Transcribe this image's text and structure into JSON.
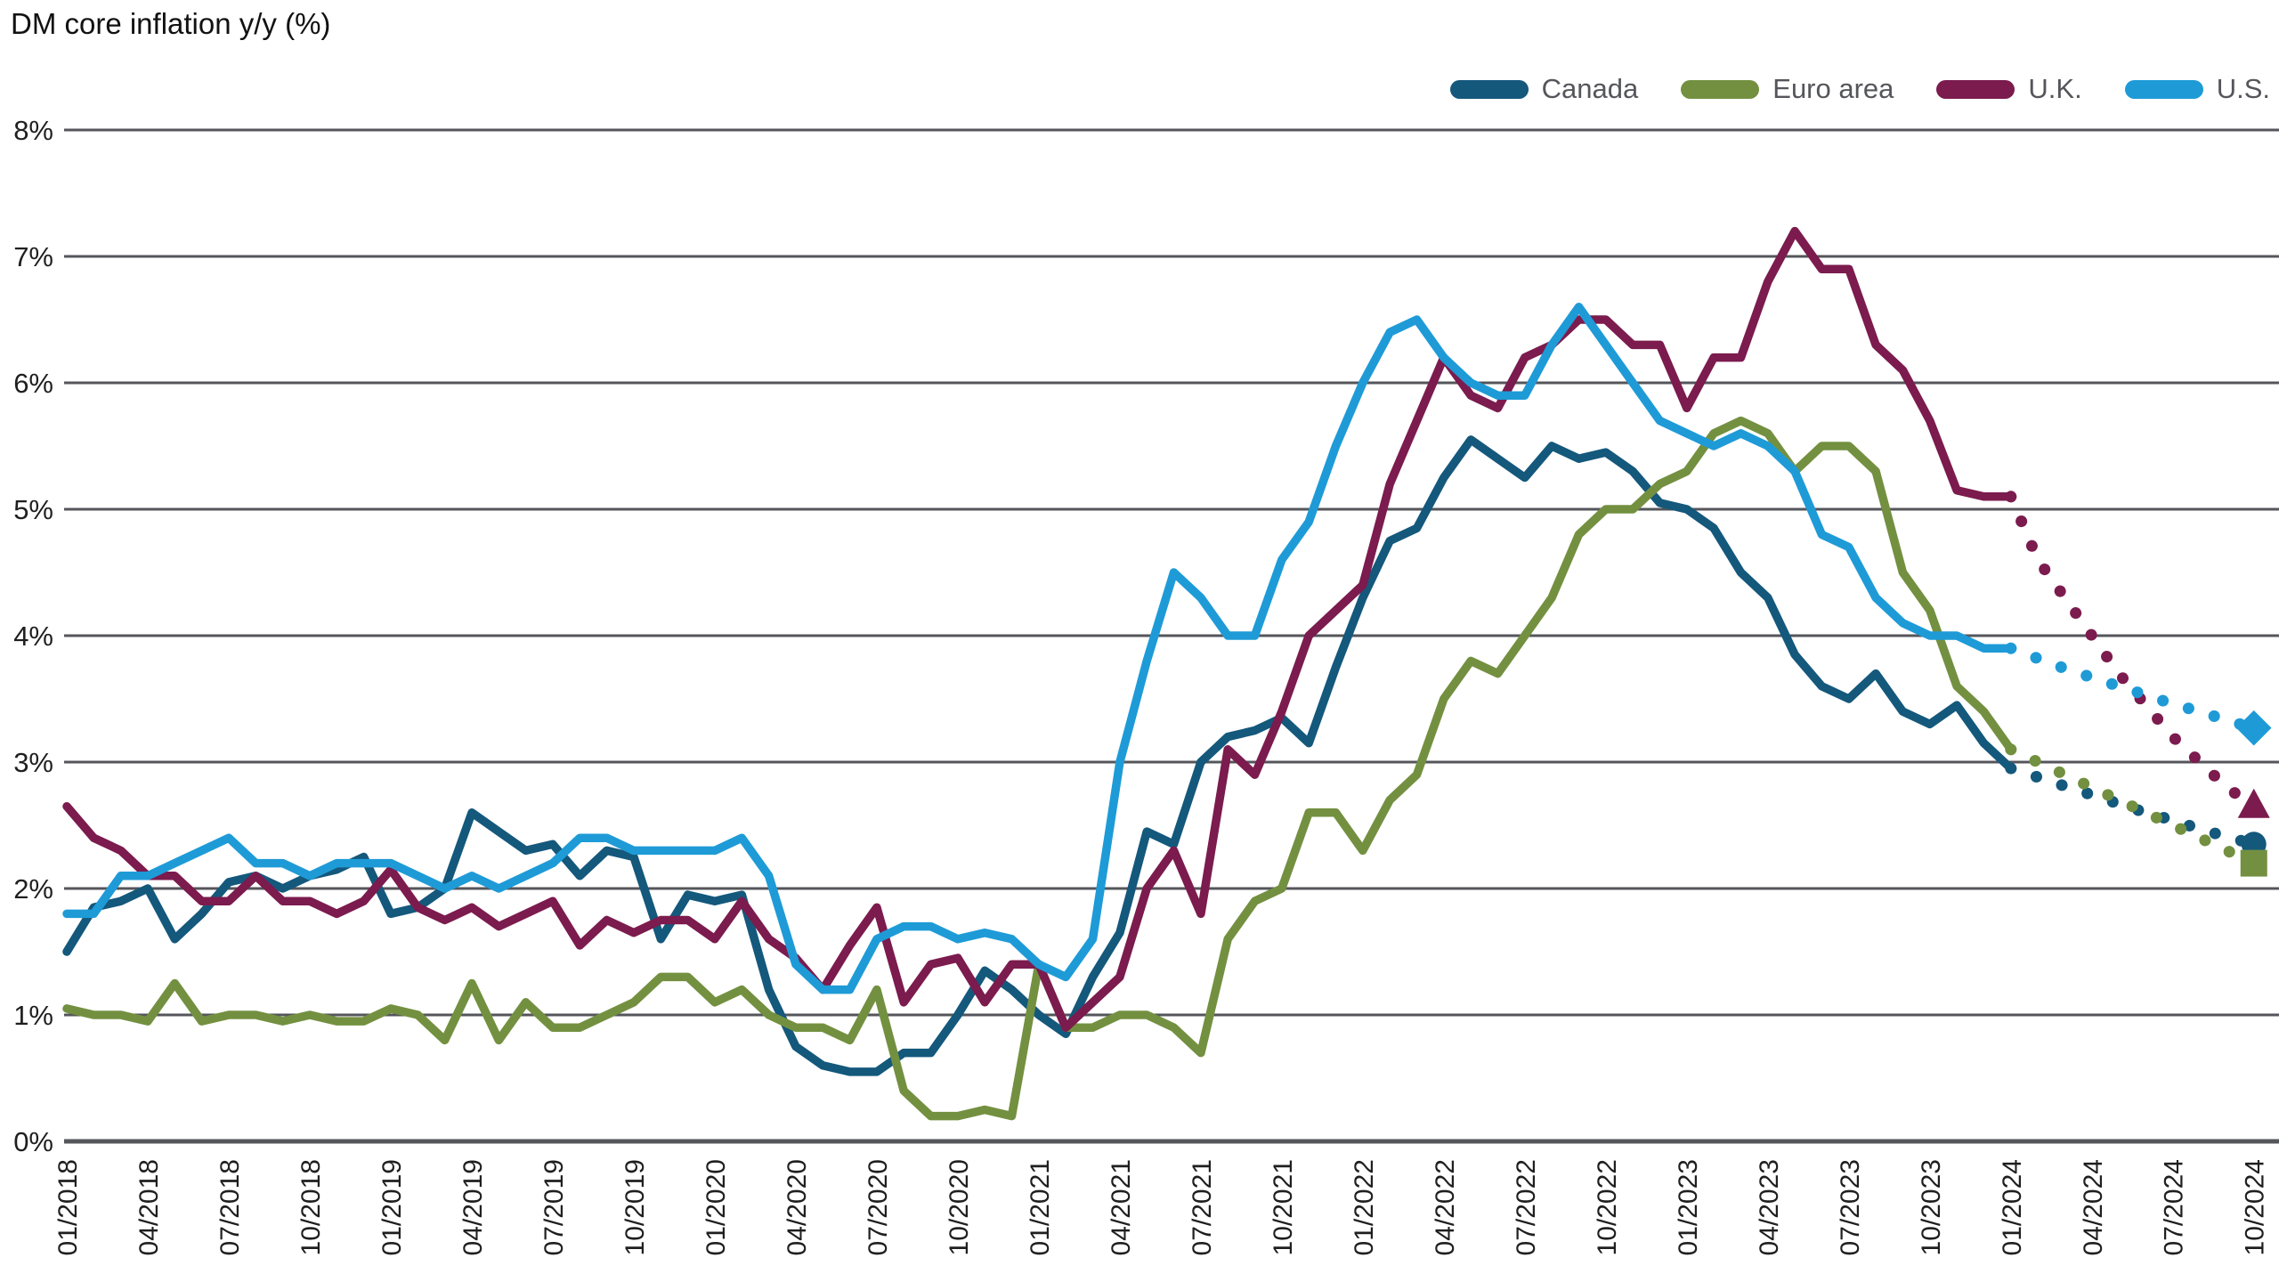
{
  "title": "DM core inflation y/y (%)",
  "colors": {
    "gridline": "#54565B",
    "axis_label": "#1F1F1F",
    "legend_label": "#55565B",
    "background": "#FFFFFF"
  },
  "chart_data": {
    "type": "line",
    "title": "DM core inflation y/y (%)",
    "xlabel": "",
    "ylabel": "",
    "ylim": [
      0,
      8
    ],
    "grid": "horizontal",
    "legend_position": "top-right",
    "y_tick_labels": [
      "0%",
      "1%",
      "2%",
      "3%",
      "4%",
      "5%",
      "6%",
      "7%",
      "8%"
    ],
    "x_tick_labels": [
      "01/2018",
      "04/2018",
      "07/2018",
      "10/2018",
      "01/2019",
      "04/2019",
      "07/2019",
      "10/2019",
      "01/2020",
      "04/2020",
      "07/2020",
      "10/2020",
      "01/2021",
      "04/2021",
      "07/2021",
      "10/2021",
      "01/2022",
      "04/2022",
      "07/2022",
      "10/2022",
      "01/2023",
      "04/2023",
      "07/2023",
      "10/2023",
      "01/2024",
      "04/2024",
      "07/2024",
      "10/2024"
    ],
    "x_frequency": "monthly",
    "forecast_start_index": 72,
    "forecast_style": "dotted",
    "series": [
      {
        "name": "Canada",
        "color": "#14587C",
        "end_marker": "circle",
        "values": [
          1.5,
          1.85,
          1.9,
          2.0,
          1.6,
          1.8,
          2.05,
          2.1,
          2.0,
          2.1,
          2.15,
          2.25,
          1.8,
          1.85,
          2.0,
          2.6,
          2.45,
          2.3,
          2.35,
          2.1,
          2.3,
          2.25,
          1.6,
          1.95,
          1.9,
          1.95,
          1.2,
          0.75,
          0.6,
          0.55,
          0.55,
          0.7,
          0.7,
          1.0,
          1.35,
          1.2,
          1.0,
          0.85,
          1.3,
          1.65,
          2.45,
          2.35,
          3.0,
          3.2,
          3.25,
          3.35,
          3.15,
          3.75,
          4.3,
          4.75,
          4.85,
          5.25,
          5.55,
          5.4,
          5.25,
          5.5,
          5.4,
          5.45,
          5.3,
          5.05,
          5.0,
          4.85,
          4.5,
          4.3,
          3.85,
          3.6,
          3.5,
          3.7,
          3.4,
          3.3,
          3.45,
          3.15,
          2.95,
          2.88,
          2.81,
          2.74,
          2.67,
          2.6,
          2.54,
          2.47,
          2.41,
          2.35
        ]
      },
      {
        "name": "Euro area",
        "color": "#739040",
        "end_marker": "square",
        "values": [
          1.05,
          1.0,
          1.0,
          0.95,
          1.25,
          0.95,
          1.0,
          1.0,
          0.95,
          1.0,
          0.95,
          0.95,
          1.05,
          1.0,
          0.8,
          1.25,
          0.8,
          1.1,
          0.9,
          0.9,
          1.0,
          1.1,
          1.3,
          1.3,
          1.1,
          1.2,
          1.0,
          0.9,
          0.9,
          0.8,
          1.2,
          0.4,
          0.2,
          0.2,
          0.25,
          0.2,
          1.4,
          0.9,
          0.9,
          1.0,
          1.0,
          0.9,
          0.7,
          1.6,
          1.9,
          2.0,
          2.6,
          2.6,
          2.3,
          2.7,
          2.9,
          3.5,
          3.8,
          3.7,
          4.0,
          4.3,
          4.8,
          5.0,
          5.0,
          5.2,
          5.3,
          5.6,
          5.7,
          5.6,
          5.3,
          5.5,
          5.5,
          5.3,
          4.5,
          4.2,
          3.6,
          3.4,
          3.1,
          3.0,
          2.9,
          2.8,
          2.7,
          2.6,
          2.5,
          2.4,
          2.3,
          2.2
        ]
      },
      {
        "name": "U.K.",
        "color": "#7B1B4E",
        "end_marker": "triangle",
        "values": [
          2.65,
          2.4,
          2.3,
          2.1,
          2.1,
          1.9,
          1.9,
          2.1,
          1.9,
          1.9,
          1.8,
          1.9,
          2.15,
          1.85,
          1.75,
          1.85,
          1.7,
          1.8,
          1.9,
          1.55,
          1.75,
          1.65,
          1.75,
          1.75,
          1.6,
          1.9,
          1.6,
          1.45,
          1.2,
          1.55,
          1.85,
          1.1,
          1.4,
          1.45,
          1.1,
          1.4,
          1.4,
          0.9,
          1.1,
          1.3,
          2.0,
          2.3,
          1.8,
          3.1,
          2.9,
          3.4,
          4.0,
          4.2,
          4.4,
          5.2,
          5.7,
          6.2,
          5.9,
          5.8,
          6.2,
          6.3,
          6.5,
          6.5,
          6.3,
          6.3,
          5.8,
          6.2,
          6.2,
          6.8,
          7.2,
          6.9,
          6.9,
          6.3,
          6.1,
          5.7,
          5.15,
          5.1,
          5.1,
          4.6,
          4.3,
          4.0,
          3.7,
          3.45,
          3.2,
          3.0,
          2.8,
          2.65
        ]
      },
      {
        "name": "U.S.",
        "color": "#1E9BD7",
        "end_marker": "diamond",
        "values": [
          1.8,
          1.8,
          2.1,
          2.1,
          2.2,
          2.3,
          2.4,
          2.2,
          2.2,
          2.1,
          2.2,
          2.2,
          2.2,
          2.1,
          2.0,
          2.1,
          2.0,
          2.1,
          2.2,
          2.4,
          2.4,
          2.3,
          2.3,
          2.3,
          2.3,
          2.4,
          2.1,
          1.4,
          1.2,
          1.2,
          1.6,
          1.7,
          1.7,
          1.6,
          1.65,
          1.6,
          1.4,
          1.3,
          1.6,
          3.0,
          3.8,
          4.5,
          4.3,
          4.0,
          4.0,
          4.6,
          4.9,
          5.5,
          6.0,
          6.4,
          6.5,
          6.2,
          6.0,
          5.9,
          5.9,
          6.3,
          6.6,
          6.3,
          6.0,
          5.7,
          5.6,
          5.5,
          5.6,
          5.5,
          5.3,
          4.8,
          4.7,
          4.3,
          4.1,
          4.0,
          4.0,
          3.9,
          3.9,
          3.82,
          3.74,
          3.67,
          3.6,
          3.53,
          3.46,
          3.4,
          3.33,
          3.27
        ]
      }
    ]
  }
}
